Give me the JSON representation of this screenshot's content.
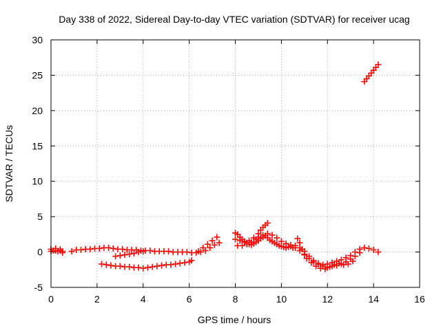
{
  "chart_data": {
    "type": "scatter",
    "title": "Day 338 of 2022, Sidereal Day-to-day VTEC variation (SDTVAR) for receiver ucag",
    "xlabel": "GPS time / hours",
    "ylabel": "SDTVAR / TECUs",
    "xlim": [
      0,
      16
    ],
    "ylim": [
      -5,
      30
    ],
    "xticks": [
      0,
      2,
      4,
      6,
      8,
      10,
      12,
      14,
      16
    ],
    "yticks": [
      -5,
      0,
      5,
      10,
      15,
      20,
      25,
      30
    ],
    "grid": true,
    "color": "#ff0000",
    "marker": "plus",
    "series": [
      {
        "name": "segment-1",
        "points": [
          [
            0.0,
            0.1
          ],
          [
            0.1,
            0.2
          ],
          [
            0.2,
            0.2
          ],
          [
            0.3,
            0.1
          ],
          [
            0.4,
            0.2
          ],
          [
            0.5,
            0.1
          ],
          [
            0.0,
            0.4
          ],
          [
            0.2,
            0.5
          ],
          [
            0.4,
            0.4
          ],
          [
            0.5,
            -0.1
          ]
        ]
      },
      {
        "name": "segment-2",
        "points": [
          [
            0.9,
            0.1
          ],
          [
            1.1,
            0.3
          ],
          [
            1.3,
            0.3
          ],
          [
            1.5,
            0.4
          ],
          [
            1.7,
            0.4
          ],
          [
            1.9,
            0.5
          ],
          [
            2.1,
            0.5
          ],
          [
            2.3,
            0.6
          ],
          [
            2.5,
            0.6
          ],
          [
            2.7,
            0.5
          ],
          [
            2.9,
            0.4
          ],
          [
            3.1,
            0.4
          ],
          [
            3.3,
            0.3
          ],
          [
            3.5,
            0.3
          ],
          [
            3.7,
            0.3
          ],
          [
            3.9,
            0.2
          ],
          [
            4.1,
            0.2
          ],
          [
            4.3,
            0.2
          ],
          [
            4.5,
            0.1
          ],
          [
            4.7,
            0.1
          ],
          [
            4.9,
            0.1
          ],
          [
            5.1,
            0.1
          ],
          [
            5.3,
            0.0
          ],
          [
            5.5,
            0.0
          ],
          [
            5.7,
            0.0
          ],
          [
            5.9,
            0.0
          ],
          [
            6.1,
            -0.1
          ],
          [
            6.3,
            -0.1
          ],
          [
            6.5,
            0.0
          ],
          [
            6.7,
            0.2
          ],
          [
            6.9,
            0.6
          ],
          [
            7.1,
            1.0
          ],
          [
            7.3,
            1.3
          ]
        ]
      },
      {
        "name": "segment-3",
        "points": [
          [
            2.8,
            -0.6
          ],
          [
            3.0,
            -0.5
          ],
          [
            3.2,
            -0.4
          ],
          [
            3.4,
            -0.3
          ],
          [
            3.6,
            -0.2
          ],
          [
            3.8,
            0.0
          ],
          [
            4.0,
            0.1
          ]
        ]
      },
      {
        "name": "segment-4",
        "points": [
          [
            6.4,
            0.1
          ],
          [
            6.6,
            0.6
          ],
          [
            6.8,
            1.1
          ],
          [
            7.0,
            1.6
          ],
          [
            7.2,
            2.1
          ]
        ]
      },
      {
        "name": "segment-5",
        "points": [
          [
            2.2,
            -1.7
          ],
          [
            2.4,
            -1.8
          ],
          [
            2.6,
            -1.9
          ],
          [
            2.8,
            -2.0
          ],
          [
            3.0,
            -2.0
          ],
          [
            3.2,
            -2.1
          ],
          [
            3.4,
            -2.1
          ],
          [
            3.6,
            -2.2
          ],
          [
            3.8,
            -2.2
          ],
          [
            4.0,
            -2.3
          ],
          [
            4.2,
            -2.2
          ],
          [
            4.4,
            -2.1
          ],
          [
            4.6,
            -2.0
          ],
          [
            4.8,
            -1.9
          ],
          [
            5.0,
            -1.8
          ],
          [
            5.2,
            -1.8
          ],
          [
            5.4,
            -1.7
          ],
          [
            5.6,
            -1.6
          ],
          [
            5.8,
            -1.5
          ],
          [
            6.0,
            -1.4
          ],
          [
            6.1,
            -1.2
          ]
        ]
      },
      {
        "name": "segment-6",
        "points": [
          [
            8.0,
            2.7
          ],
          [
            8.1,
            2.5
          ],
          [
            8.2,
            2.1
          ],
          [
            8.3,
            1.8
          ],
          [
            8.4,
            1.5
          ],
          [
            8.5,
            1.3
          ],
          [
            8.6,
            1.1
          ],
          [
            8.7,
            1.0
          ],
          [
            8.8,
            1.2
          ],
          [
            8.9,
            1.4
          ],
          [
            9.0,
            1.6
          ],
          [
            9.1,
            1.9
          ],
          [
            9.2,
            2.1
          ],
          [
            9.3,
            2.3
          ],
          [
            9.4,
            2.0
          ],
          [
            9.5,
            1.7
          ],
          [
            9.6,
            1.5
          ],
          [
            9.7,
            1.3
          ],
          [
            9.8,
            1.1
          ],
          [
            9.9,
            0.9
          ],
          [
            10.0,
            0.8
          ],
          [
            10.1,
            0.7
          ],
          [
            10.2,
            0.6
          ],
          [
            10.3,
            0.7
          ],
          [
            10.4,
            0.8
          ],
          [
            10.5,
            0.6
          ]
        ]
      },
      {
        "name": "segment-7",
        "points": [
          [
            8.0,
            1.8
          ],
          [
            8.2,
            1.6
          ],
          [
            8.4,
            1.4
          ],
          [
            8.6,
            1.6
          ],
          [
            8.8,
            2.0
          ],
          [
            9.0,
            2.6
          ],
          [
            9.1,
            3.1
          ],
          [
            9.2,
            3.5
          ],
          [
            9.3,
            3.8
          ],
          [
            9.4,
            4.1
          ]
        ]
      },
      {
        "name": "segment-8",
        "points": [
          [
            8.1,
            0.9
          ],
          [
            8.3,
            0.9
          ],
          [
            8.5,
            1.1
          ],
          [
            8.7,
            1.4
          ],
          [
            8.9,
            1.8
          ],
          [
            9.0,
            2.1
          ],
          [
            9.2,
            2.4
          ],
          [
            9.4,
            2.6
          ],
          [
            9.6,
            2.4
          ],
          [
            9.8,
            2.0
          ],
          [
            10.0,
            1.5
          ],
          [
            10.2,
            1.2
          ],
          [
            10.4,
            1.0
          ],
          [
            10.6,
            0.6
          ],
          [
            10.8,
            0.2
          ],
          [
            11.0,
            -0.4
          ],
          [
            11.2,
            -0.9
          ],
          [
            11.4,
            -1.4
          ],
          [
            11.6,
            -1.7
          ],
          [
            11.8,
            -1.8
          ],
          [
            12.0,
            -1.7
          ],
          [
            12.2,
            -1.5
          ],
          [
            12.4,
            -1.3
          ],
          [
            12.6,
            -1.1
          ],
          [
            12.8,
            -0.8
          ],
          [
            13.0,
            -0.5
          ],
          [
            13.2,
            0.0
          ],
          [
            13.4,
            0.4
          ],
          [
            13.6,
            0.6
          ],
          [
            13.8,
            0.5
          ],
          [
            14.0,
            0.3
          ],
          [
            14.2,
            0.0
          ]
        ]
      },
      {
        "name": "segment-9",
        "points": [
          [
            10.6,
            0.9
          ],
          [
            10.8,
            0.6
          ],
          [
            11.0,
            0.1
          ],
          [
            11.2,
            -0.6
          ],
          [
            11.4,
            -1.2
          ],
          [
            11.6,
            -1.6
          ],
          [
            11.8,
            -2.0
          ],
          [
            12.0,
            -2.2
          ],
          [
            12.2,
            -2.0
          ],
          [
            12.4,
            -1.9
          ],
          [
            12.6,
            -1.7
          ],
          [
            12.8,
            -1.4
          ],
          [
            13.0,
            -1.0
          ],
          [
            13.2,
            -0.6
          ],
          [
            13.4,
            -0.1
          ]
        ]
      },
      {
        "name": "segment-10",
        "points": [
          [
            10.7,
            1.9
          ],
          [
            10.8,
            1.3
          ],
          [
            10.9,
            0.4
          ],
          [
            11.0,
            -0.3
          ],
          [
            11.1,
            -0.9
          ],
          [
            11.3,
            -1.5
          ],
          [
            11.5,
            -2.0
          ],
          [
            11.7,
            -2.3
          ],
          [
            11.9,
            -2.4
          ],
          [
            12.1,
            -2.1
          ],
          [
            12.3,
            -1.8
          ],
          [
            12.5,
            -1.6
          ],
          [
            12.7,
            -1.8
          ],
          [
            12.9,
            -1.7
          ],
          [
            13.1,
            -1.3
          ]
        ]
      },
      {
        "name": "segment-11",
        "points": [
          [
            13.6,
            24.1
          ],
          [
            13.7,
            24.5
          ],
          [
            13.8,
            24.9
          ],
          [
            13.9,
            25.3
          ],
          [
            14.0,
            25.7
          ],
          [
            14.1,
            26.1
          ],
          [
            14.2,
            26.5
          ]
        ]
      }
    ]
  }
}
